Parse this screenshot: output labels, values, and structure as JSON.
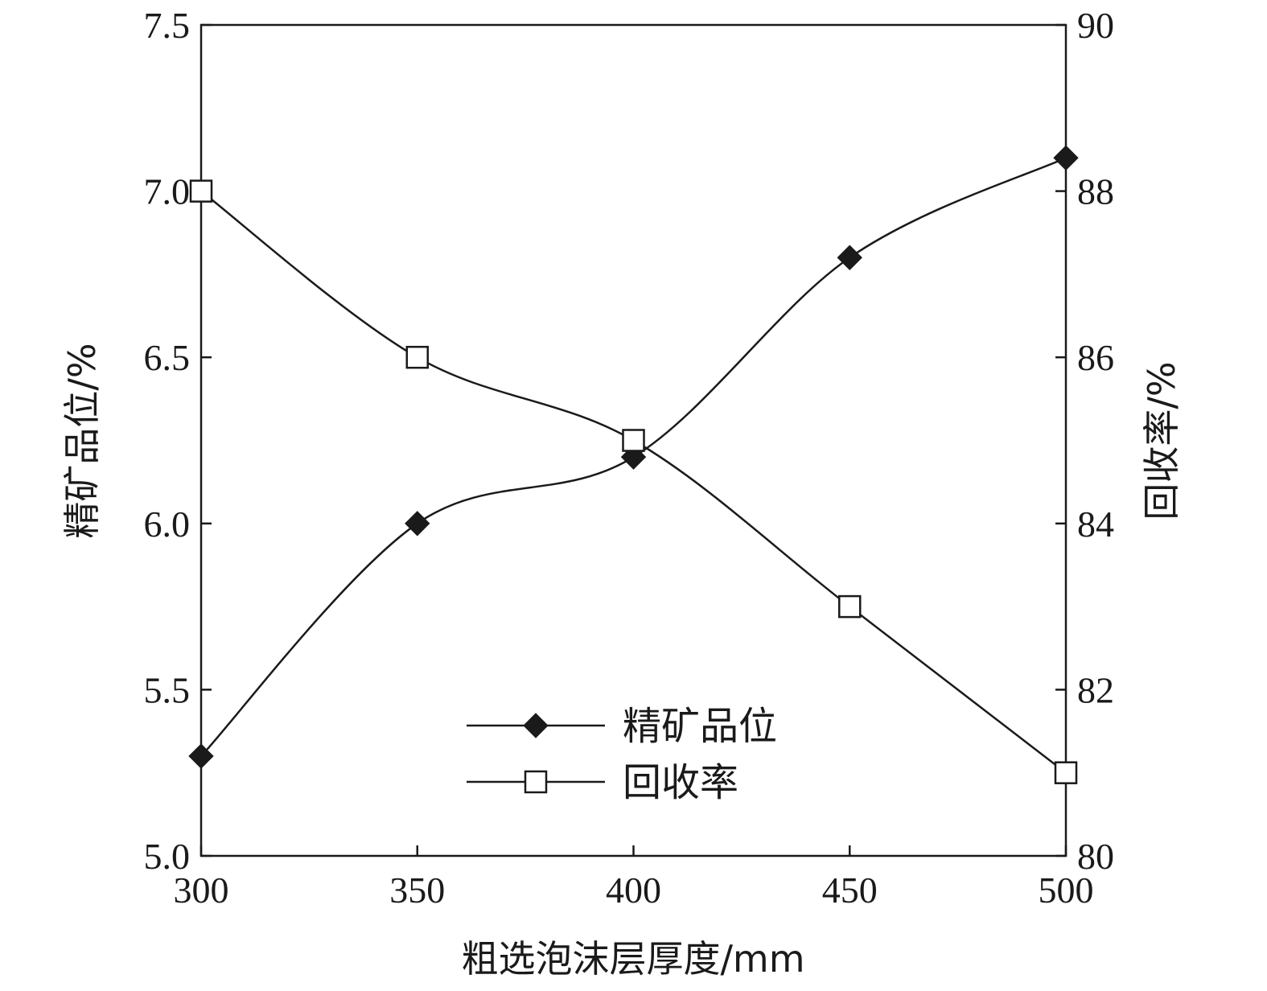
{
  "chart_data": {
    "type": "line",
    "title": "",
    "xlabel": "粗选泡沫层厚度/mm",
    "ylabel_left": "精矿品位/%",
    "ylabel_right": "回收率/%",
    "x": [
      300,
      350,
      400,
      450,
      500
    ],
    "xlim": [
      300,
      500
    ],
    "xticks": [
      "300",
      "350",
      "400",
      "450",
      "500"
    ],
    "ylim_left": [
      5.0,
      7.5
    ],
    "yticks_left": [
      "5.0",
      "5.5",
      "6.0",
      "6.5",
      "7.0",
      "7.5"
    ],
    "ylim_right": [
      80,
      90
    ],
    "yticks_right": [
      "80",
      "82",
      "84",
      "86",
      "88",
      "90"
    ],
    "grid": false,
    "legend_position": "bottom-center",
    "series": [
      {
        "name": "精矿品位",
        "axis": "left",
        "marker": "filled-diamond",
        "color": "#1a1a1a",
        "values": [
          5.3,
          6.0,
          6.2,
          6.8,
          7.1
        ]
      },
      {
        "name": "回收率",
        "axis": "right",
        "marker": "open-square",
        "color": "#1a1a1a",
        "values": [
          88,
          86,
          85,
          83,
          81
        ]
      }
    ]
  }
}
